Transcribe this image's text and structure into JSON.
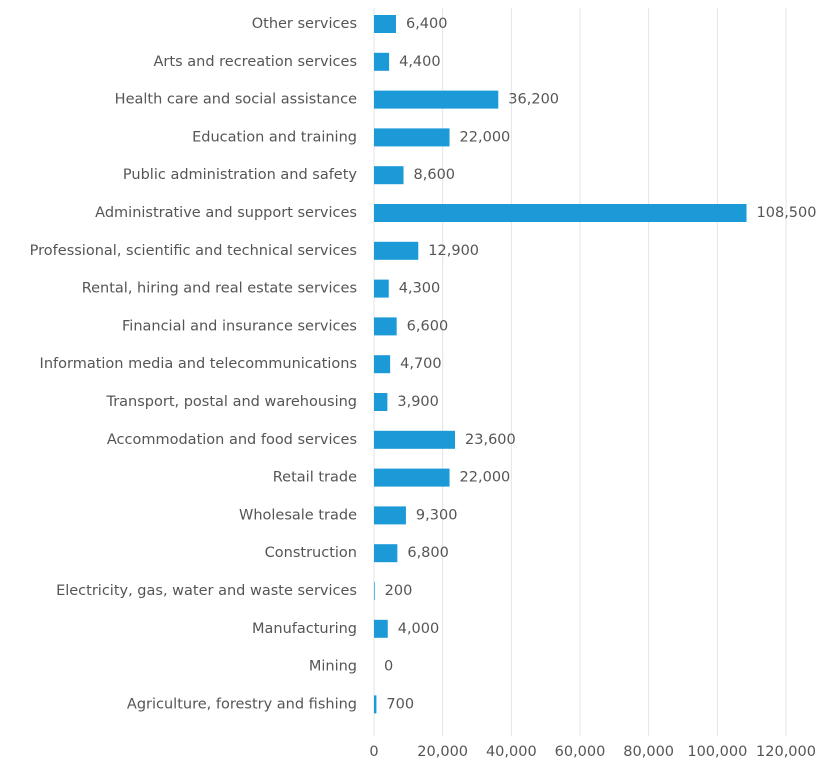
{
  "chart_data": {
    "type": "barh",
    "categories": [
      "Other services",
      "Arts and recreation services",
      "Health care and social assistance",
      "Education and training",
      "Public administration and safety",
      "Administrative and support services",
      "Professional, scientific and technical services",
      "Rental, hiring and real estate services",
      "Financial and insurance services",
      "Information media and telecommunications",
      "Transport, postal and warehousing",
      "Accommodation and food services",
      "Retail trade",
      "Wholesale trade",
      "Construction",
      "Electricity, gas, water and waste services",
      "Manufacturing",
      "Mining",
      "Agriculture, forestry and fishing"
    ],
    "values": [
      6400,
      4400,
      36200,
      22000,
      8600,
      108500,
      12900,
      4300,
      6600,
      4700,
      3900,
      23600,
      22000,
      9300,
      6800,
      200,
      4000,
      0,
      700
    ],
    "value_labels": [
      "6,400",
      "4,400",
      "36,200",
      "22,000",
      "8,600",
      "108,500",
      "12,900",
      "4,300",
      "6,600",
      "4,700",
      "3,900",
      "23,600",
      "22,000",
      "9,300",
      "6,800",
      "200",
      "4,000",
      "0",
      "700"
    ],
    "color": "#1b9ad7",
    "xlim": [
      0,
      120000
    ],
    "xticks": [
      0,
      {
        "value": 20000,
        "label": "20,000"
      },
      {
        "value": 40000,
        "label": "40,000"
      },
      {
        "value": 60000,
        "label": "60,000"
      },
      {
        "value": 80000,
        "label": "80,000"
      },
      {
        "value": 100000,
        "label": "100,000"
      },
      {
        "value": 120000,
        "label": "120,000"
      }
    ],
    "grid": true
  }
}
